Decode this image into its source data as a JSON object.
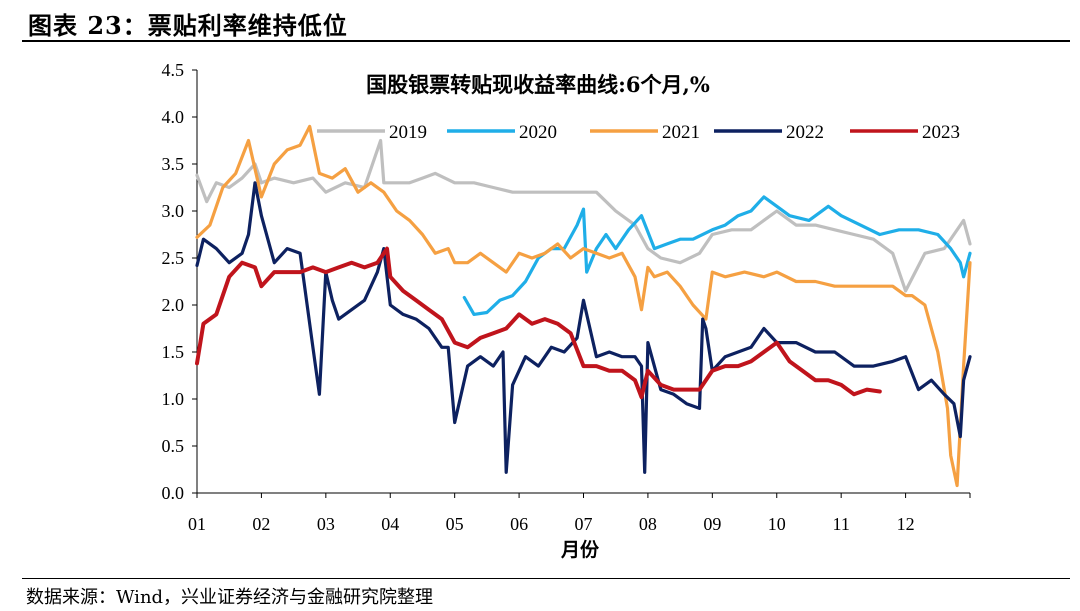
{
  "figure": {
    "title": "图表 23：票贴利率维持低位",
    "source": "数据来源：Wind，兴业证券经济与金融研究院整理"
  },
  "chart_data": {
    "type": "line",
    "title": "国股银票转贴现收益率曲线:6个月,%",
    "xlabel": "月份",
    "ylabel": "",
    "xlim": [
      1,
      13
    ],
    "ylim": [
      0,
      4.5
    ],
    "yticks": [
      "0.0",
      "0.5",
      "1.0",
      "1.5",
      "2.0",
      "2.5",
      "3.0",
      "3.5",
      "4.0",
      "4.5"
    ],
    "xticks": [
      "01",
      "02",
      "03",
      "04",
      "05",
      "06",
      "07",
      "08",
      "09",
      "10",
      "11",
      "12"
    ],
    "legend_position": "top",
    "series": [
      {
        "name": "2019",
        "color": "#BFBFBF",
        "x": [
          1.0,
          1.15,
          1.3,
          1.5,
          1.7,
          1.9,
          2.0,
          2.2,
          2.5,
          2.8,
          3.0,
          3.3,
          3.6,
          3.85,
          3.9,
          4.0,
          4.3,
          4.5,
          4.7,
          5.0,
          5.3,
          5.6,
          5.9,
          6.2,
          6.5,
          6.8,
          7.0,
          7.2,
          7.5,
          7.8,
          8.0,
          8.2,
          8.5,
          8.8,
          9.0,
          9.3,
          9.6,
          10.0,
          10.3,
          10.6,
          10.9,
          11.2,
          11.5,
          11.8,
          12.0,
          12.3,
          12.6,
          12.9,
          13.0
        ],
        "y": [
          3.38,
          3.1,
          3.3,
          3.25,
          3.35,
          3.5,
          3.3,
          3.35,
          3.3,
          3.35,
          3.2,
          3.3,
          3.25,
          3.75,
          3.3,
          3.3,
          3.3,
          3.35,
          3.4,
          3.3,
          3.3,
          3.25,
          3.2,
          3.2,
          3.2,
          3.2,
          3.2,
          3.2,
          3.0,
          2.85,
          2.6,
          2.5,
          2.45,
          2.55,
          2.75,
          2.8,
          2.8,
          3.0,
          2.85,
          2.85,
          2.8,
          2.75,
          2.7,
          2.55,
          2.15,
          2.55,
          2.6,
          2.9,
          2.65
        ]
      },
      {
        "name": "2020",
        "color": "#1FAEE8",
        "x": [
          5.15,
          5.3,
          5.5,
          5.7,
          5.9,
          6.1,
          6.3,
          6.5,
          6.7,
          6.9,
          7.0,
          7.05,
          7.2,
          7.35,
          7.5,
          7.7,
          7.9,
          8.1,
          8.3,
          8.5,
          8.7,
          9.0,
          9.2,
          9.4,
          9.6,
          9.8,
          10.0,
          10.2,
          10.5,
          10.8,
          11.0,
          11.3,
          11.6,
          11.9,
          12.2,
          12.5,
          12.7,
          12.85,
          12.9,
          13.0
        ],
        "y": [
          2.08,
          1.9,
          1.92,
          2.05,
          2.1,
          2.25,
          2.5,
          2.6,
          2.6,
          2.85,
          3.02,
          2.35,
          2.6,
          2.75,
          2.6,
          2.8,
          2.95,
          2.6,
          2.65,
          2.7,
          2.7,
          2.8,
          2.85,
          2.95,
          3.0,
          3.15,
          3.05,
          2.95,
          2.9,
          3.05,
          2.95,
          2.85,
          2.75,
          2.8,
          2.8,
          2.75,
          2.6,
          2.45,
          2.3,
          2.55
        ]
      },
      {
        "name": "2021",
        "color": "#F5A042",
        "x": [
          1.0,
          1.2,
          1.4,
          1.6,
          1.8,
          2.0,
          2.2,
          2.4,
          2.6,
          2.75,
          2.9,
          3.1,
          3.3,
          3.5,
          3.7,
          3.9,
          4.1,
          4.3,
          4.5,
          4.7,
          4.9,
          5.0,
          5.2,
          5.4,
          5.6,
          5.8,
          6.0,
          6.2,
          6.4,
          6.6,
          6.8,
          7.0,
          7.2,
          7.4,
          7.6,
          7.8,
          7.9,
          8.0,
          8.1,
          8.3,
          8.5,
          8.7,
          8.9,
          9.0,
          9.2,
          9.5,
          9.8,
          10.0,
          10.3,
          10.6,
          10.9,
          11.2,
          11.5,
          11.8,
          12.0,
          12.1,
          12.3,
          12.5,
          12.65,
          12.7,
          12.8,
          12.9,
          13.0
        ],
        "y": [
          2.72,
          2.85,
          3.25,
          3.4,
          3.75,
          3.15,
          3.5,
          3.65,
          3.7,
          3.9,
          3.4,
          3.35,
          3.45,
          3.2,
          3.3,
          3.2,
          3.0,
          2.9,
          2.75,
          2.55,
          2.6,
          2.45,
          2.45,
          2.55,
          2.45,
          2.35,
          2.55,
          2.5,
          2.55,
          2.65,
          2.5,
          2.6,
          2.55,
          2.5,
          2.55,
          2.3,
          1.95,
          2.4,
          2.3,
          2.35,
          2.2,
          2.0,
          1.85,
          2.35,
          2.3,
          2.35,
          2.3,
          2.35,
          2.25,
          2.25,
          2.2,
          2.2,
          2.2,
          2.2,
          2.1,
          2.1,
          2.0,
          1.5,
          0.9,
          0.4,
          0.08,
          1.35,
          2.45
        ]
      },
      {
        "name": "2022",
        "color": "#0D2160",
        "x": [
          1.0,
          1.1,
          1.3,
          1.5,
          1.7,
          1.8,
          1.9,
          2.0,
          2.2,
          2.4,
          2.6,
          2.8,
          2.9,
          3.0,
          3.1,
          3.2,
          3.4,
          3.6,
          3.8,
          3.9,
          4.0,
          4.2,
          4.4,
          4.6,
          4.8,
          4.9,
          5.0,
          5.2,
          5.4,
          5.6,
          5.75,
          5.8,
          5.9,
          6.1,
          6.3,
          6.5,
          6.7,
          6.9,
          7.0,
          7.2,
          7.4,
          7.6,
          7.8,
          7.9,
          7.95,
          8.0,
          8.2,
          8.4,
          8.6,
          8.8,
          8.85,
          8.9,
          9.0,
          9.2,
          9.4,
          9.6,
          9.8,
          10.0,
          10.3,
          10.6,
          10.9,
          11.2,
          11.5,
          11.8,
          12.0,
          12.2,
          12.4,
          12.6,
          12.75,
          12.85,
          12.9,
          13.0
        ],
        "y": [
          2.42,
          2.7,
          2.6,
          2.45,
          2.55,
          2.75,
          3.3,
          2.95,
          2.45,
          2.6,
          2.55,
          1.55,
          1.05,
          2.35,
          2.05,
          1.85,
          1.95,
          2.05,
          2.35,
          2.6,
          2.0,
          1.9,
          1.85,
          1.75,
          1.55,
          1.55,
          0.75,
          1.35,
          1.45,
          1.35,
          1.5,
          0.22,
          1.15,
          1.45,
          1.35,
          1.55,
          1.5,
          1.65,
          2.05,
          1.45,
          1.5,
          1.45,
          1.45,
          1.35,
          0.22,
          1.6,
          1.1,
          1.05,
          0.95,
          0.9,
          1.85,
          1.75,
          1.3,
          1.45,
          1.5,
          1.55,
          1.75,
          1.6,
          1.6,
          1.5,
          1.5,
          1.35,
          1.35,
          1.4,
          1.45,
          1.1,
          1.2,
          1.05,
          0.95,
          0.6,
          1.2,
          1.45
        ]
      },
      {
        "name": "2023",
        "color": "#C0141C",
        "x": [
          1.0,
          1.1,
          1.3,
          1.5,
          1.7,
          1.9,
          2.0,
          2.2,
          2.4,
          2.6,
          2.8,
          3.0,
          3.2,
          3.4,
          3.6,
          3.8,
          3.95,
          4.0,
          4.2,
          4.4,
          4.6,
          4.8,
          5.0,
          5.2,
          5.4,
          5.6,
          5.8,
          6.0,
          6.2,
          6.4,
          6.6,
          6.8,
          7.0,
          7.2,
          7.4,
          7.6,
          7.8,
          7.9,
          8.0,
          8.2,
          8.4,
          8.6,
          8.8,
          9.0,
          9.2,
          9.4,
          9.6,
          9.8,
          10.0,
          10.2,
          10.4,
          10.6,
          10.8,
          11.0,
          11.2,
          11.4,
          11.6
        ],
        "y": [
          1.38,
          1.8,
          1.9,
          2.3,
          2.45,
          2.4,
          2.2,
          2.35,
          2.35,
          2.35,
          2.4,
          2.35,
          2.4,
          2.45,
          2.4,
          2.45,
          2.6,
          2.3,
          2.15,
          2.05,
          1.95,
          1.85,
          1.6,
          1.55,
          1.65,
          1.7,
          1.75,
          1.9,
          1.8,
          1.85,
          1.8,
          1.7,
          1.35,
          1.35,
          1.3,
          1.3,
          1.2,
          1.02,
          1.3,
          1.15,
          1.1,
          1.1,
          1.1,
          1.3,
          1.35,
          1.35,
          1.4,
          1.5,
          1.6,
          1.4,
          1.3,
          1.2,
          1.2,
          1.15,
          1.05,
          1.1,
          1.08
        ]
      }
    ]
  }
}
